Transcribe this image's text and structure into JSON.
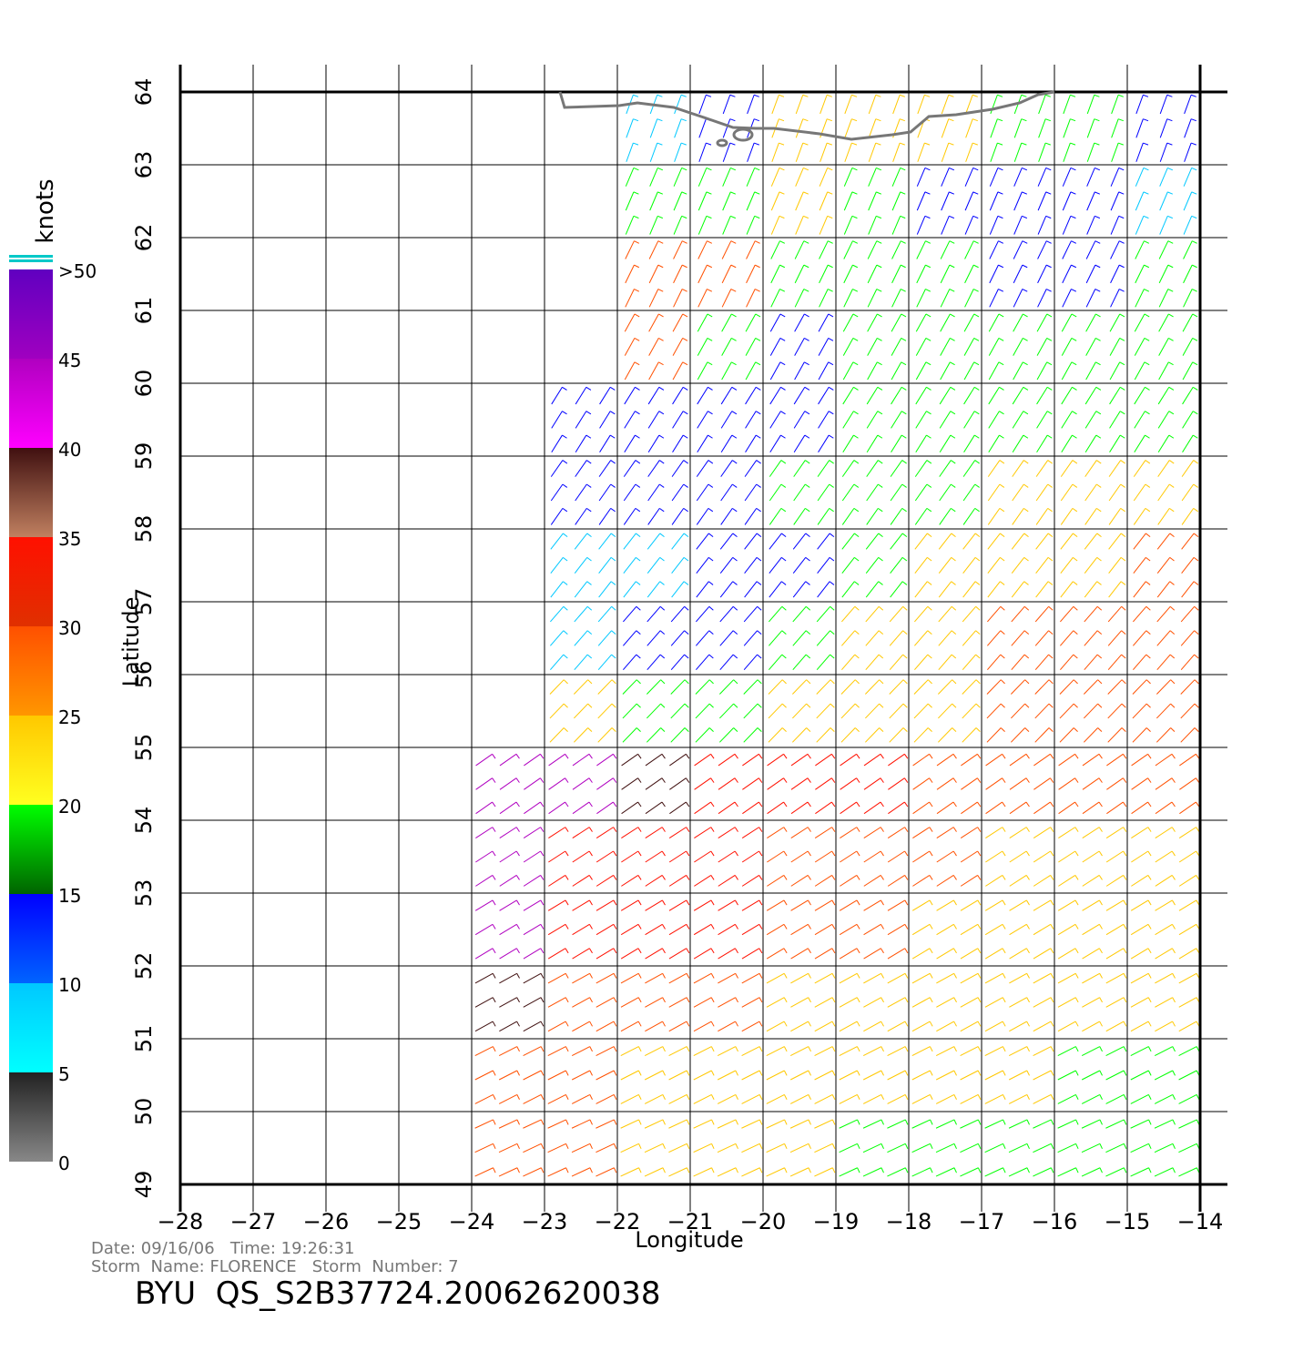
{
  "chart_data": {
    "type": "wind_map",
    "xlabel": "Longitude",
    "ylabel": "Latitude",
    "xlim": [
      -28,
      -14
    ],
    "ylim": [
      49,
      64
    ],
    "xticks": [
      {
        "value": -28,
        "label": "−28"
      },
      {
        "value": -27,
        "label": "−27"
      },
      {
        "value": -26,
        "label": "−26"
      },
      {
        "value": -25,
        "label": "−25"
      },
      {
        "value": -24,
        "label": "−24"
      },
      {
        "value": -23,
        "label": "−23"
      },
      {
        "value": -22,
        "label": "−22"
      },
      {
        "value": -21,
        "label": "−21"
      },
      {
        "value": -20,
        "label": "−20"
      },
      {
        "value": -19,
        "label": "−19"
      },
      {
        "value": -18,
        "label": "−18"
      },
      {
        "value": -17,
        "label": "−17"
      },
      {
        "value": -16,
        "label": "−16"
      },
      {
        "value": -15,
        "label": "−15"
      },
      {
        "value": -14,
        "label": "−14"
      }
    ],
    "yticks": [
      49,
      50,
      51,
      52,
      53,
      54,
      55,
      56,
      57,
      58,
      59,
      60,
      61,
      62,
      63,
      64
    ],
    "grid": true,
    "wind": {
      "lat": [
        63.5,
        62.5,
        61.5,
        60.5,
        59.5,
        58.5,
        57.5,
        56.5,
        55.5,
        54.5,
        53.5,
        52.5,
        51.5,
        50.5,
        49.5
      ],
      "lon": [
        -23.5,
        -22.5,
        -21.5,
        -20.5,
        -19.5,
        -18.5,
        -17.5,
        -16.5,
        -15.5,
        -14.5
      ],
      "speed": [
        [
          null,
          null,
          8,
          12,
          20,
          20,
          20,
          18,
          18,
          10
        ],
        [
          null,
          null,
          18,
          18,
          22,
          18,
          14,
          12,
          10,
          8
        ],
        [
          null,
          null,
          28,
          28,
          18,
          18,
          17,
          13,
          12,
          17
        ],
        [
          null,
          null,
          25,
          17,
          14,
          17,
          17,
          17,
          17,
          17
        ],
        [
          null,
          14,
          14,
          13,
          13,
          17,
          17,
          17,
          17,
          17
        ],
        [
          null,
          12,
          12,
          12,
          17,
          17,
          18,
          20,
          20,
          22
        ],
        [
          null,
          8,
          8,
          10,
          14,
          17,
          22,
          24,
          24,
          26
        ],
        [
          null,
          8,
          12,
          12,
          17,
          20,
          22,
          25,
          26,
          27
        ],
        [
          null,
          22,
          17,
          17,
          20,
          22,
          24,
          28,
          28,
          28
        ],
        [
          40,
          42,
          38,
          30,
          30,
          30,
          28,
          27,
          26,
          28
        ],
        [
          40,
          33,
          32,
          30,
          28,
          26,
          25,
          24,
          23,
          22
        ],
        [
          40,
          30,
          30,
          30,
          28,
          25,
          24,
          22,
          22,
          22
        ],
        [
          35,
          28,
          25,
          25,
          24,
          22,
          22,
          20,
          20,
          20
        ],
        [
          28,
          26,
          24,
          22,
          22,
          20,
          20,
          20,
          18,
          18
        ],
        [
          28,
          25,
          23,
          22,
          20,
          18,
          16,
          15,
          15,
          16
        ]
      ]
    },
    "colorbar": {
      "title": "knots",
      "ticks": [
        0,
        5,
        10,
        15,
        20,
        25,
        30,
        35,
        40,
        45,
        {
          "value": 50,
          "label": ">50"
        }
      ],
      "colors": [
        [
          "#888888",
          "#222222"
        ],
        [
          "#00ffff",
          "#00c8ff"
        ],
        [
          "#0064ff",
          "#0000ff"
        ],
        [
          "#006400",
          "#00ff00"
        ],
        [
          "#ffff20",
          "#ffc800"
        ],
        [
          "#ff9600",
          "#ff5000"
        ],
        [
          "#e03000",
          "#ff1000"
        ],
        [
          "#c08060",
          "#401010"
        ],
        [
          "#ff00ff",
          "#b000c0"
        ],
        [
          "#a000c0",
          "#6000c0"
        ]
      ]
    },
    "footer": {
      "line1": "Date: 09/16/06   Time: 19:26:31",
      "line2": "Storm  Name: FLORENCE   Storm  Number: 7",
      "id": "BYU  QS_S2B37724.20062620038"
    }
  }
}
